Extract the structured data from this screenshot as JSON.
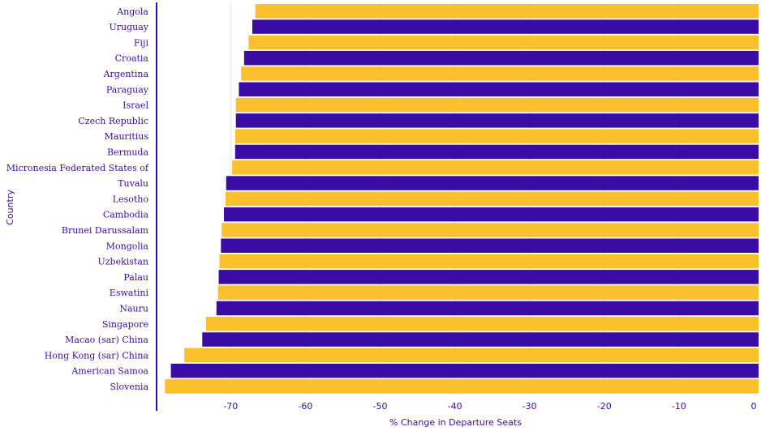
{
  "chart_data": {
    "type": "bar",
    "orientation": "horizontal",
    "xlabel": "% Change in Departure Seats",
    "ylabel": "Country",
    "xlim": [
      -79,
      0
    ],
    "x_ticks": [
      -70,
      -60,
      -50,
      -40,
      -30,
      -20,
      -10,
      0
    ],
    "grid": true,
    "categories": [
      "Angola",
      "Uruguay",
      "Fiji",
      "Croatia",
      "Argentina",
      "Paraguay",
      "Israel",
      "Czech Republic",
      "Mauritius",
      "Bermuda",
      "Micronesia Federated States of",
      "Tuvalu",
      "Lesotho",
      "Cambodia",
      "Brunei Darussalam",
      "Mongolia",
      "Uzbekistan",
      "Palau",
      "Eswatini",
      "Nauru",
      "Singapore",
      "Macao (sar) China",
      "Hong Kong (sar) China",
      "American Samoa",
      "Slovenia"
    ],
    "values": [
      -66.7,
      -67.1,
      -67.6,
      -68.2,
      -68.6,
      -68.9,
      -69.3,
      -69.3,
      -69.4,
      -69.4,
      -69.8,
      -70.6,
      -70.7,
      -70.9,
      -71.2,
      -71.3,
      -71.5,
      -71.6,
      -71.7,
      -71.9,
      -73.3,
      -73.8,
      -76.2,
      -78.0,
      -78.8
    ],
    "colors": {
      "bar_primary": "#fbc02d",
      "bar_secondary": "#3a0ca3",
      "text": "#3a0ca3",
      "grid": "#e6e6e6",
      "axis": "#2f0fa0"
    }
  }
}
